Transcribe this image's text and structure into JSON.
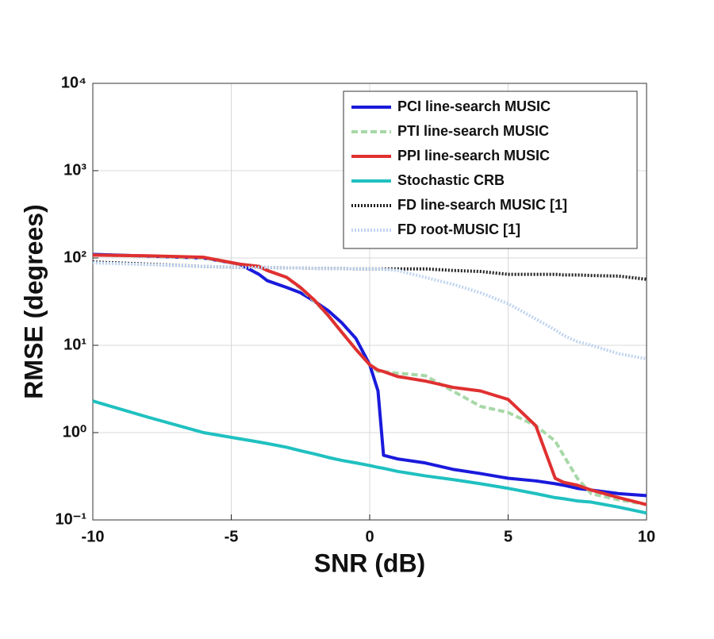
{
  "chart_data": {
    "type": "line",
    "xlabel": "SNR (dB)",
    "ylabel": "RMSE (degrees)",
    "x": [
      -10,
      -8,
      -6,
      -4.7,
      -4,
      -3.7,
      -3,
      -2.5,
      -2,
      -1.5,
      -1,
      -0.5,
      0,
      0.3,
      0.5,
      1,
      2,
      3,
      4,
      5,
      6,
      6.7,
      7,
      7.5,
      8,
      9,
      10
    ],
    "series": [
      {
        "name": "PCI line-search MUSIC",
        "color": "#1a1adc",
        "linestyle": "solid",
        "values": [
          110,
          105,
          100,
          85,
          65,
          55,
          46,
          40,
          32,
          25,
          18,
          12,
          6,
          3,
          0.55,
          0.5,
          0.45,
          0.38,
          0.34,
          0.3,
          0.28,
          0.26,
          0.25,
          0.23,
          0.22,
          0.2,
          0.19
        ]
      },
      {
        "name": "PTI line-search MUSIC",
        "color": "#a8d8a8",
        "linestyle": "dashed",
        "values": [
          108,
          105,
          100,
          85,
          80,
          72,
          60,
          45,
          32,
          22,
          14,
          9,
          6,
          5,
          5,
          4.8,
          4.5,
          3,
          2,
          1.7,
          1.2,
          0.8,
          0.55,
          0.3,
          0.2,
          0.17,
          0.15
        ]
      },
      {
        "name": "PPI line-search MUSIC",
        "color": "#e03030",
        "linestyle": "solid",
        "values": [
          108,
          106,
          102,
          85,
          80,
          72,
          60,
          46,
          33,
          22,
          14,
          9,
          6,
          5.2,
          5,
          4.4,
          3.9,
          3.3,
          3,
          2.4,
          1.2,
          0.3,
          0.27,
          0.25,
          0.22,
          0.18,
          0.15
        ]
      },
      {
        "name": "Stochastic CRB",
        "color": "#20c0c0",
        "linestyle": "solid",
        "values": [
          2.3,
          1.5,
          1.0,
          0.85,
          0.78,
          0.75,
          0.68,
          0.62,
          0.57,
          0.52,
          0.48,
          0.45,
          0.42,
          0.4,
          0.39,
          0.36,
          0.32,
          0.29,
          0.26,
          0.23,
          0.2,
          0.18,
          0.175,
          0.165,
          0.16,
          0.14,
          0.12
        ]
      },
      {
        "name": "FD line-search MUSIC [1]",
        "color": "#202020",
        "linestyle": "dotted",
        "values": [
          90,
          85,
          80,
          78,
          78,
          78,
          77,
          77,
          76,
          76,
          76,
          75,
          75,
          75,
          75,
          75,
          75,
          72,
          70,
          65,
          65,
          65,
          64,
          64,
          63,
          62,
          57
        ]
      },
      {
        "name": "FD root-MUSIC [1]",
        "color": "#c0d4f0",
        "linestyle": "dotted",
        "values": [
          88,
          84,
          80,
          78,
          78,
          78,
          77,
          77,
          76,
          76,
          76,
          75,
          75,
          75,
          74,
          72,
          60,
          50,
          40,
          30,
          20,
          15,
          13,
          11,
          10,
          8,
          7
        ]
      }
    ],
    "xlim": [
      -10,
      10
    ],
    "xticks": [
      -10,
      -5,
      0,
      5,
      10
    ],
    "ylim": [
      0.1,
      10000
    ],
    "ylog": true,
    "yticks": [
      {
        "value": 0.1,
        "label": "10⁻¹"
      },
      {
        "value": 1,
        "label": "10⁰"
      },
      {
        "value": 10,
        "label": "10¹"
      },
      {
        "value": 100,
        "label": "10²"
      },
      {
        "value": 1000,
        "label": "10³"
      },
      {
        "value": 10000,
        "label": "10⁴"
      }
    ],
    "grid": true,
    "legend": "upper right"
  }
}
